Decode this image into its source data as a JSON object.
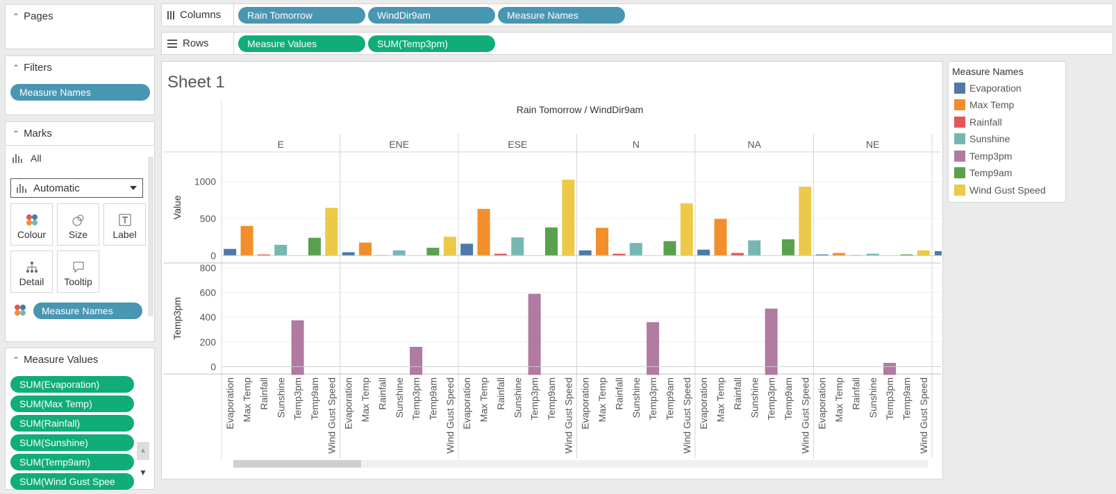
{
  "pages": {
    "title": "Pages"
  },
  "filters": {
    "title": "Filters",
    "pill": "Measure Names"
  },
  "marks": {
    "title": "Marks",
    "all_label": "All",
    "mark_type": "Automatic",
    "cards": [
      "Colour",
      "Size",
      "Label",
      "Detail",
      "Tooltip"
    ],
    "colour_pill": "Measure Names"
  },
  "measure_values": {
    "title": "Measure Values",
    "pills": [
      "SUM(Evaporation)",
      "SUM(Max Temp)",
      "SUM(Rainfall)",
      "SUM(Sunshine)",
      "SUM(Temp9am)",
      "SUM(Wind Gust Spee"
    ]
  },
  "shelves": {
    "columns_label": "Columns",
    "columns": [
      "Rain Tomorrow",
      "WindDir9am",
      "Measure Names"
    ],
    "rows_label": "Rows",
    "rows": [
      "Measure Values",
      "SUM(Temp3pm)"
    ]
  },
  "sheet_title": "Sheet 1",
  "legend": {
    "title": "Measure Names",
    "items": [
      {
        "name": "Evaporation",
        "color": "#4e79a7"
      },
      {
        "name": "Max Temp",
        "color": "#f28e2b"
      },
      {
        "name": "Rainfall",
        "color": "#e15759"
      },
      {
        "name": "Sunshine",
        "color": "#76b7b2"
      },
      {
        "name": "Temp3pm",
        "color": "#b07aa1"
      },
      {
        "name": "Temp9am",
        "color": "#59a14f"
      },
      {
        "name": "Wind Gust Speed",
        "color": "#edc948"
      }
    ]
  },
  "chart_data": {
    "type": "bar",
    "header": "Rain Tomorrow / WindDir9am",
    "panes": [
      "E",
      "ENE",
      "ESE",
      "N",
      "NA",
      "NE"
    ],
    "measures": [
      "Evaporation",
      "Max Temp",
      "Rainfall",
      "Sunshine",
      "Temp3pm",
      "Temp9am",
      "Wind Gust Speed"
    ],
    "top_axis": {
      "label": "Value",
      "ticks": [
        0,
        500,
        1000
      ],
      "ylim": [
        -100,
        1400
      ]
    },
    "bottom_axis": {
      "label": "Temp3pm",
      "ticks": [
        0,
        200,
        400,
        600,
        800
      ],
      "ylim": [
        -60,
        840
      ]
    },
    "value_series": {
      "E": {
        "Evaporation": 90,
        "Max Temp": 400,
        "Rainfall": 15,
        "Sunshine": 145,
        "Temp9am": 240,
        "Wind Gust Speed": 645
      },
      "ENE": {
        "Evaporation": 45,
        "Max Temp": 175,
        "Rainfall": 5,
        "Sunshine": 70,
        "Temp9am": 105,
        "Wind Gust Speed": 255
      },
      "ESE": {
        "Evaporation": 160,
        "Max Temp": 630,
        "Rainfall": 25,
        "Sunshine": 245,
        "Temp9am": 380,
        "Wind Gust Speed": 1025
      },
      "N": {
        "Evaporation": 70,
        "Max Temp": 375,
        "Rainfall": 25,
        "Sunshine": 170,
        "Temp9am": 195,
        "Wind Gust Speed": 705
      },
      "NA": {
        "Evaporation": 80,
        "Max Temp": 495,
        "Rainfall": 35,
        "Sunshine": 205,
        "Temp9am": 220,
        "Wind Gust Speed": 930
      },
      "NE": {
        "Evaporation": 15,
        "Max Temp": 35,
        "Rainfall": 5,
        "Sunshine": 25,
        "Temp9am": 15,
        "Wind Gust Speed": 70
      }
    },
    "temp3pm": {
      "E": 375,
      "ENE": 160,
      "ESE": 590,
      "N": 360,
      "NA": 470,
      "NE": 30
    },
    "partial_next_pane_evaporation": 60
  }
}
